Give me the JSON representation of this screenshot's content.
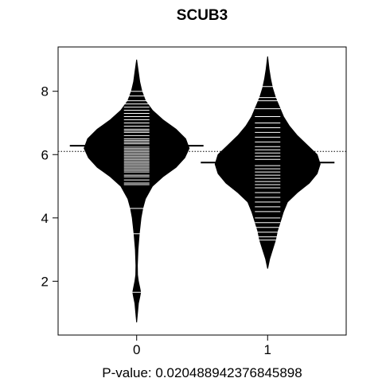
{
  "chart_data": {
    "type": "beanplot",
    "title": "SCUB3",
    "xlabel": "P-value: 0.020488942376845898",
    "ylabel": "",
    "categories": [
      "0",
      "1"
    ],
    "xlim": [
      -0.6,
      1.6
    ],
    "ylim": [
      0.3,
      9.4
    ],
    "yticks": [
      2,
      4,
      6,
      8
    ],
    "overall_mean": 6.1,
    "grid": false,
    "beans": [
      {
        "group": "0",
        "mean": 6.28,
        "density_range": [
          0.7,
          9.0
        ],
        "density": [
          [
            0.7,
            0.0
          ],
          [
            1.0,
            0.01
          ],
          [
            1.3,
            0.02
          ],
          [
            1.5,
            0.035
          ],
          [
            1.65,
            0.045
          ],
          [
            1.8,
            0.035
          ],
          [
            2.0,
            0.02
          ],
          [
            2.2,
            0.01
          ],
          [
            2.5,
            0.008
          ],
          [
            3.0,
            0.015
          ],
          [
            3.5,
            0.03
          ],
          [
            4.0,
            0.05
          ],
          [
            4.3,
            0.07
          ],
          [
            4.6,
            0.1
          ],
          [
            5.0,
            0.18
          ],
          [
            5.3,
            0.3
          ],
          [
            5.6,
            0.45
          ],
          [
            5.9,
            0.55
          ],
          [
            6.2,
            0.6
          ],
          [
            6.5,
            0.56
          ],
          [
            6.8,
            0.45
          ],
          [
            7.1,
            0.3
          ],
          [
            7.4,
            0.18
          ],
          [
            7.7,
            0.1
          ],
          [
            8.0,
            0.06
          ],
          [
            8.3,
            0.035
          ],
          [
            8.6,
            0.02
          ],
          [
            9.0,
            0.0
          ]
        ],
        "values": [
          1.65,
          3.5,
          4.3,
          5.05,
          5.1,
          5.2,
          5.3,
          5.35,
          5.45,
          5.5,
          5.55,
          5.6,
          5.65,
          5.7,
          5.75,
          5.8,
          5.85,
          5.9,
          5.95,
          6.0,
          6.05,
          6.1,
          6.15,
          6.2,
          6.25,
          6.3,
          6.35,
          6.4,
          6.45,
          6.5,
          6.6,
          6.7,
          6.75,
          6.8,
          6.9,
          7.0,
          7.1,
          7.2,
          7.3,
          7.4,
          7.5,
          7.6,
          7.7,
          7.85,
          8.0
        ]
      },
      {
        "group": "1",
        "mean": 5.75,
        "density_range": [
          2.4,
          9.1
        ],
        "density": [
          [
            2.4,
            0.0
          ],
          [
            2.7,
            0.02
          ],
          [
            3.0,
            0.05
          ],
          [
            3.3,
            0.08
          ],
          [
            3.6,
            0.1
          ],
          [
            3.9,
            0.13
          ],
          [
            4.2,
            0.16
          ],
          [
            4.5,
            0.2
          ],
          [
            4.8,
            0.3
          ],
          [
            5.1,
            0.42
          ],
          [
            5.4,
            0.5
          ],
          [
            5.7,
            0.53
          ],
          [
            6.0,
            0.5
          ],
          [
            6.3,
            0.4
          ],
          [
            6.6,
            0.3
          ],
          [
            6.9,
            0.22
          ],
          [
            7.2,
            0.16
          ],
          [
            7.5,
            0.12
          ],
          [
            7.8,
            0.08
          ],
          [
            8.1,
            0.05
          ],
          [
            8.4,
            0.03
          ],
          [
            8.7,
            0.015
          ],
          [
            9.1,
            0.0
          ]
        ],
        "values": [
          3.3,
          3.4,
          3.55,
          3.7,
          3.85,
          4.0,
          4.2,
          4.35,
          4.5,
          4.65,
          4.8,
          4.95,
          5.05,
          5.15,
          5.25,
          5.35,
          5.45,
          5.55,
          5.65,
          5.75,
          5.85,
          5.95,
          6.05,
          6.15,
          6.25,
          6.4,
          6.55,
          6.7,
          6.85,
          7.0,
          7.2,
          7.45,
          7.7,
          7.8,
          8.15
        ]
      }
    ]
  }
}
